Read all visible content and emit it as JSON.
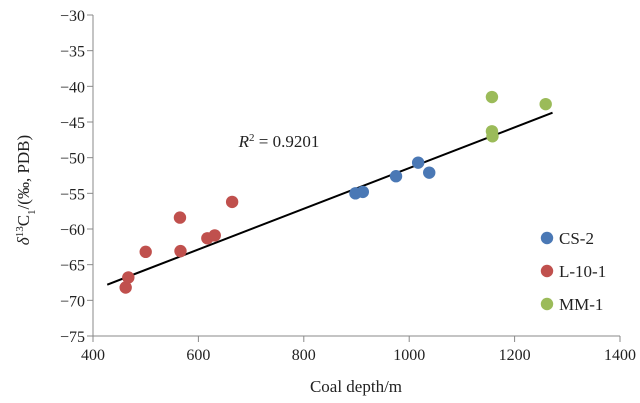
{
  "chart_data": {
    "type": "scatter",
    "xlabel": "Coal depth/m",
    "ylabel": {
      "prefix": "δ",
      "sup": "13",
      "main": "C",
      "sub": "1",
      "suffix": "/(‰, PDB)"
    },
    "xlim": [
      400,
      1400
    ],
    "ylim": [
      -75,
      -30
    ],
    "x_ticks": [
      400,
      600,
      800,
      1000,
      1200,
      1400
    ],
    "y_ticks": [
      -75,
      -70,
      -65,
      -60,
      -55,
      -50,
      -45,
      -40,
      -35,
      -30
    ],
    "x_tick_labels": [
      "400",
      "600",
      "800",
      "1000",
      "1200",
      "1400"
    ],
    "y_tick_labels": [
      "−75",
      "−70",
      "−65",
      "−60",
      "−55",
      "−50",
      "−45",
      "−40",
      "−35",
      "−30"
    ],
    "grid": false,
    "legend_position": "right",
    "series": [
      {
        "name": "CS-2",
        "color": "#4a78b5",
        "points": [
          {
            "x": 898,
            "y": -55.0
          },
          {
            "x": 912,
            "y": -54.8
          },
          {
            "x": 975,
            "y": -52.6
          },
          {
            "x": 1017,
            "y": -50.7
          },
          {
            "x": 1038,
            "y": -52.1
          }
        ]
      },
      {
        "name": "L-10-1",
        "color": "#c0504d",
        "points": [
          {
            "x": 462,
            "y": -68.2
          },
          {
            "x": 467,
            "y": -66.8
          },
          {
            "x": 500,
            "y": -63.2
          },
          {
            "x": 565,
            "y": -58.4
          },
          {
            "x": 566,
            "y": -63.1
          },
          {
            "x": 617,
            "y": -61.3
          },
          {
            "x": 631,
            "y": -60.9
          },
          {
            "x": 664,
            "y": -56.2
          }
        ]
      },
      {
        "name": "MM-1",
        "color": "#9bbb59",
        "points": [
          {
            "x": 1157,
            "y": -41.5
          },
          {
            "x": 1157,
            "y": -46.3
          },
          {
            "x": 1158,
            "y": -47.0
          },
          {
            "x": 1259,
            "y": -42.5
          }
        ]
      }
    ],
    "trendline": {
      "x": [
        427,
        1272
      ],
      "y": [
        -67.8,
        -43.7
      ],
      "color": "#000000"
    },
    "annotation": {
      "var": "R",
      "sup": "2",
      "text": " = 0.9201",
      "x": 775,
      "y": -48.5
    }
  }
}
